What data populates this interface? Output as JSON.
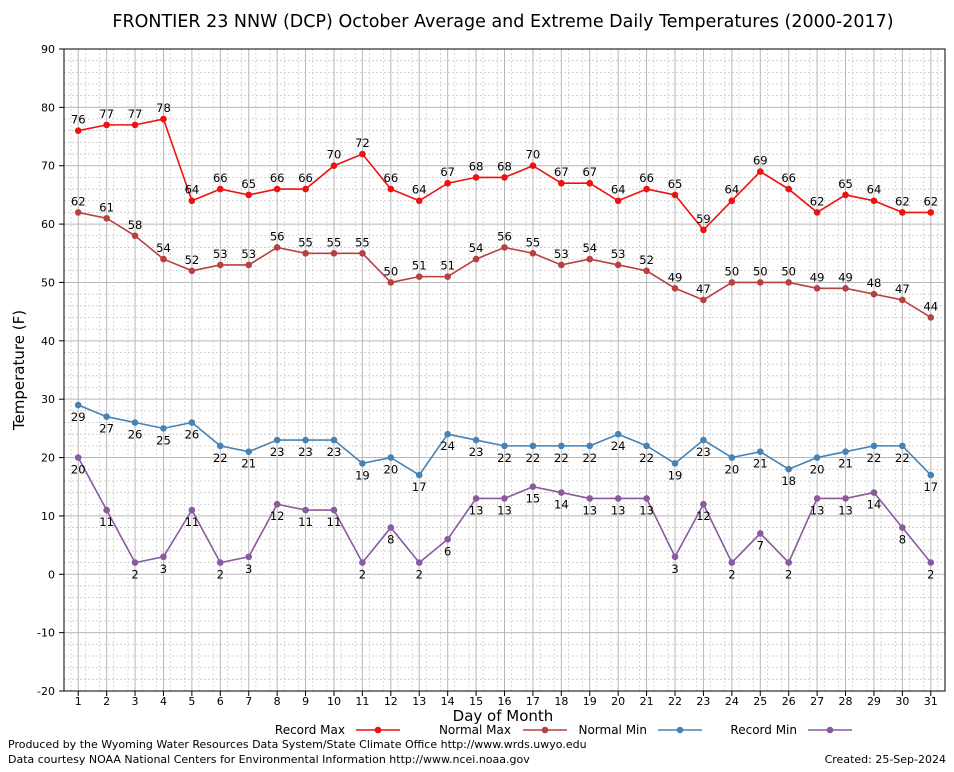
{
  "chart_data": {
    "type": "line",
    "title": "FRONTIER 23 NNW (DCP) October Average and Extreme Daily Temperatures (2000-2017)",
    "xlabel": "Day of Month",
    "ylabel": "Temperature (F)",
    "ylim": [
      -20,
      90
    ],
    "yticks": [
      -20,
      -10,
      0,
      10,
      20,
      30,
      40,
      50,
      60,
      70,
      80,
      90
    ],
    "x": [
      1,
      2,
      3,
      4,
      5,
      6,
      7,
      8,
      9,
      10,
      11,
      12,
      13,
      14,
      15,
      16,
      17,
      18,
      19,
      20,
      21,
      22,
      23,
      24,
      25,
      26,
      27,
      28,
      29,
      30,
      31
    ],
    "grid": true,
    "legend_position": "bottom",
    "series": [
      {
        "name": "Record Max",
        "color": "#ee1111",
        "label_position": "above",
        "values": [
          76,
          77,
          77,
          78,
          64,
          66,
          65,
          66,
          66,
          70,
          72,
          66,
          64,
          67,
          68,
          68,
          70,
          67,
          67,
          64,
          66,
          65,
          59,
          64,
          69,
          66,
          62,
          65,
          64,
          62,
          62
        ]
      },
      {
        "name": "Normal Max",
        "color": "#b94040",
        "label_position": "above",
        "values": [
          62,
          61,
          58,
          54,
          52,
          53,
          53,
          56,
          55,
          55,
          55,
          50,
          51,
          51,
          54,
          56,
          55,
          53,
          54,
          53,
          52,
          49,
          47,
          50,
          50,
          50,
          49,
          49,
          48,
          47,
          44
        ]
      },
      {
        "name": "Normal Min",
        "color": "#4682b4",
        "label_position": "below",
        "values": [
          29,
          27,
          26,
          25,
          26,
          22,
          21,
          23,
          23,
          23,
          19,
          20,
          17,
          24,
          23,
          22,
          22,
          22,
          22,
          24,
          22,
          19,
          23,
          20,
          21,
          18,
          20,
          21,
          22,
          22,
          17
        ]
      },
      {
        "name": "Record Min",
        "color": "#8a5a9e",
        "label_position": "below",
        "values": [
          20,
          11,
          2,
          3,
          11,
          2,
          3,
          12,
          11,
          11,
          2,
          8,
          2,
          6,
          13,
          13,
          15,
          14,
          13,
          13,
          13,
          3,
          12,
          2,
          7,
          2,
          13,
          13,
          14,
          8,
          2
        ]
      }
    ]
  },
  "footer": {
    "produced_by": "Produced by the Wyoming Water Resources Data System/State Climate Office http://www.wrds.uwyo.edu",
    "data_courtesy": "Data courtesy NOAA National Centers for Environmental Information http://www.ncei.noaa.gov",
    "created": "Created:  25-Sep-2024"
  }
}
